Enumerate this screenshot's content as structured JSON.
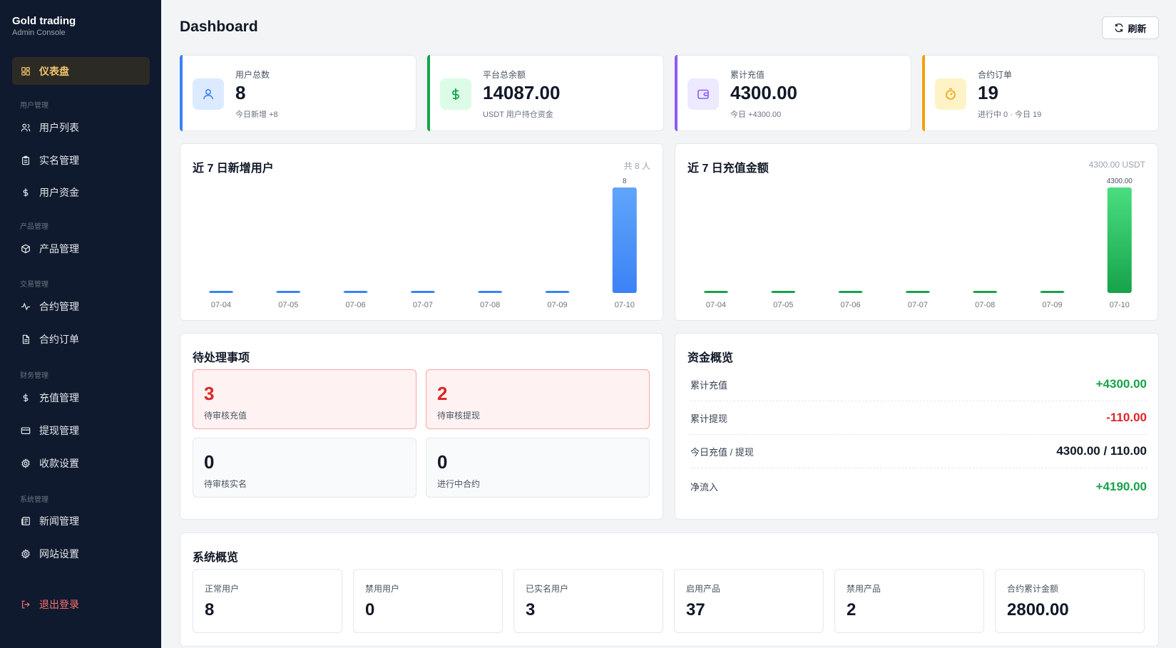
{
  "brand": {
    "title": "Gold trading",
    "subtitle": "Admin Console"
  },
  "sidebar": {
    "groups": {
      "users": "用户管理",
      "products": "产品管理",
      "trade": "交易管理",
      "finance": "财务管理",
      "system": "系统管理"
    },
    "items": {
      "dashboard": "仪表盘",
      "user_list": "用户列表",
      "real_name": "实名管理",
      "user_funds": "用户资金",
      "products": "产品管理",
      "contracts": "合约管理",
      "contract_orders": "合约订单",
      "recharge": "充值管理",
      "withdraw": "提现管理",
      "payment_settings": "收款设置",
      "news": "新闻管理",
      "site_settings": "网站设置",
      "logout": "退出登录"
    }
  },
  "header": {
    "title": "Dashboard",
    "refresh_label": "刷新"
  },
  "stats": [
    {
      "label": "用户总数",
      "value": "8",
      "sub": "今日新增 +8",
      "color": "#3b82f6",
      "icon": "user-icon"
    },
    {
      "label": "平台总余额",
      "value": "14087.00",
      "sub": "USDT 用户持仓资金",
      "color": "#16a34a",
      "icon": "dollar-icon"
    },
    {
      "label": "累计充值",
      "value": "4300.00",
      "sub": "今日 +4300.00",
      "color": "#8b5cf6",
      "icon": "wallet-icon"
    },
    {
      "label": "合约订单",
      "value": "19",
      "sub": "进行中 0 · 今日 19",
      "color": "#f59e0b",
      "icon": "timer-icon"
    }
  ],
  "charts": {
    "users": {
      "title": "近 7 日新增用户",
      "meta": "共 8 人"
    },
    "recharge": {
      "title": "近 7 日充值金额",
      "meta": "4300.00 USDT"
    }
  },
  "chart_data": [
    {
      "type": "bar",
      "title": "近 7 日新增用户",
      "categories": [
        "07-04",
        "07-05",
        "07-06",
        "07-07",
        "07-08",
        "07-09",
        "07-10"
      ],
      "values": [
        0,
        0,
        0,
        0,
        0,
        0,
        8
      ],
      "data_labels": [
        "",
        "",
        "",
        "",
        "",
        "",
        "8"
      ],
      "color": "#3b82f6",
      "grid": false
    },
    {
      "type": "bar",
      "title": "近 7 日充值金额",
      "categories": [
        "07-04",
        "07-05",
        "07-06",
        "07-07",
        "07-08",
        "07-09",
        "07-10"
      ],
      "values": [
        0,
        0,
        0,
        0,
        0,
        0,
        4300
      ],
      "data_labels": [
        "",
        "",
        "",
        "",
        "",
        "",
        "4300.00"
      ],
      "color": "#16a34a",
      "grid": false
    }
  ],
  "pending": {
    "title": "待处理事项",
    "items": [
      {
        "value": "3",
        "label": "待审核充值"
      },
      {
        "value": "2",
        "label": "待审核提现"
      },
      {
        "value": "0",
        "label": "待审核实名"
      },
      {
        "value": "0",
        "label": "进行中合约"
      }
    ]
  },
  "funds": {
    "title": "资金概览",
    "rows": [
      {
        "label": "累计充值",
        "value": "+4300.00"
      },
      {
        "label": "累计提现",
        "value": "-110.00"
      },
      {
        "label": "今日充值 / 提现",
        "value": "4300.00 / 110.00"
      },
      {
        "label": "净流入",
        "value": "+4190.00"
      }
    ]
  },
  "system": {
    "title": "系统概览",
    "items": [
      {
        "label": "正常用户",
        "value": "8"
      },
      {
        "label": "禁用用户",
        "value": "0"
      },
      {
        "label": "已实名用户",
        "value": "3"
      },
      {
        "label": "启用产品",
        "value": "37"
      },
      {
        "label": "禁用产品",
        "value": "2"
      },
      {
        "label": "合约累计金额",
        "value": "2800.00"
      }
    ]
  }
}
